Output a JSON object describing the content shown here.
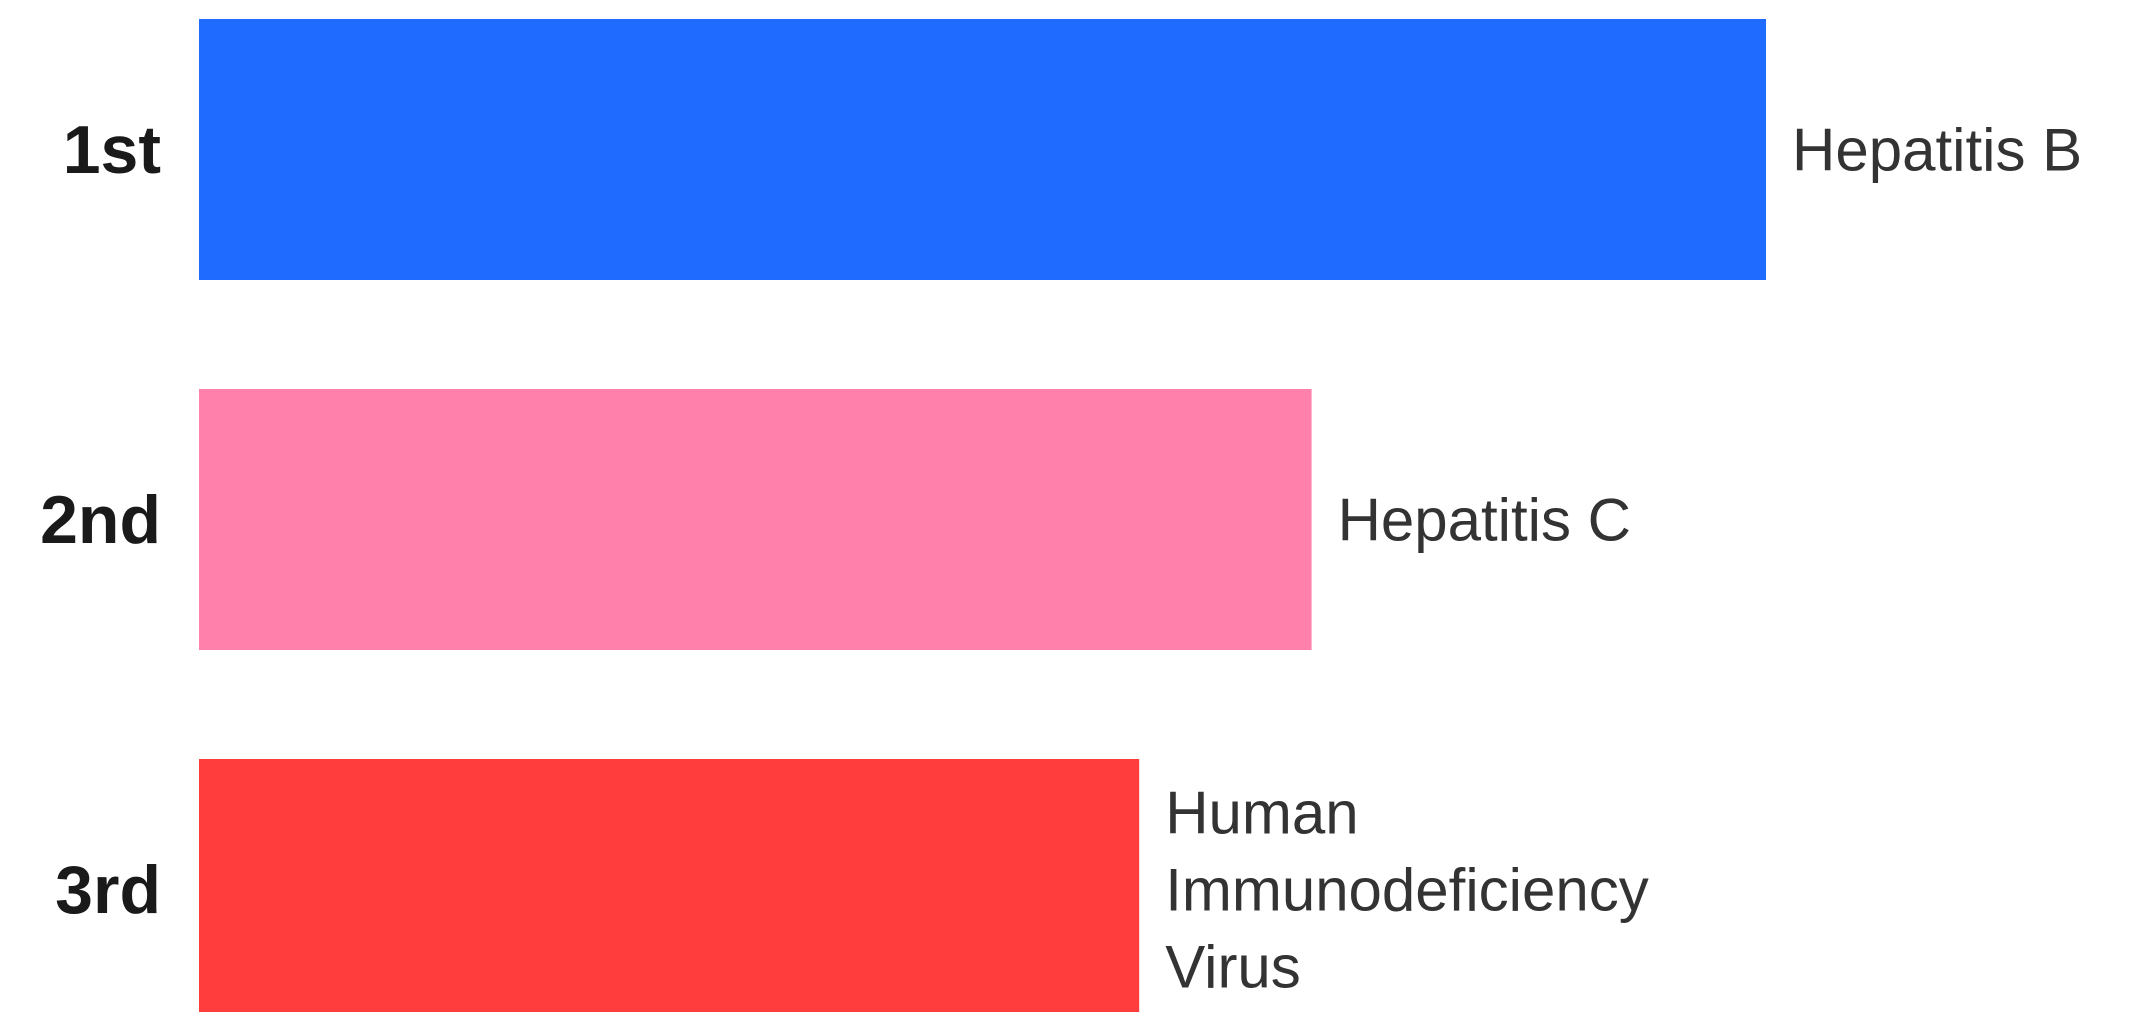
{
  "chart_data": {
    "type": "bar",
    "orientation": "horizontal",
    "categories": [
      "1st",
      "2nd",
      "3rd"
    ],
    "values": [
      100,
      71,
      60
    ],
    "bar_labels": [
      "Hepatitis B",
      "Hepatitis C",
      "Human Immunodeficiency Virus"
    ],
    "colors": [
      "#1f6bff",
      "#ff80aa",
      "#ff3d3d"
    ],
    "xlim": [
      0,
      100
    ]
  }
}
